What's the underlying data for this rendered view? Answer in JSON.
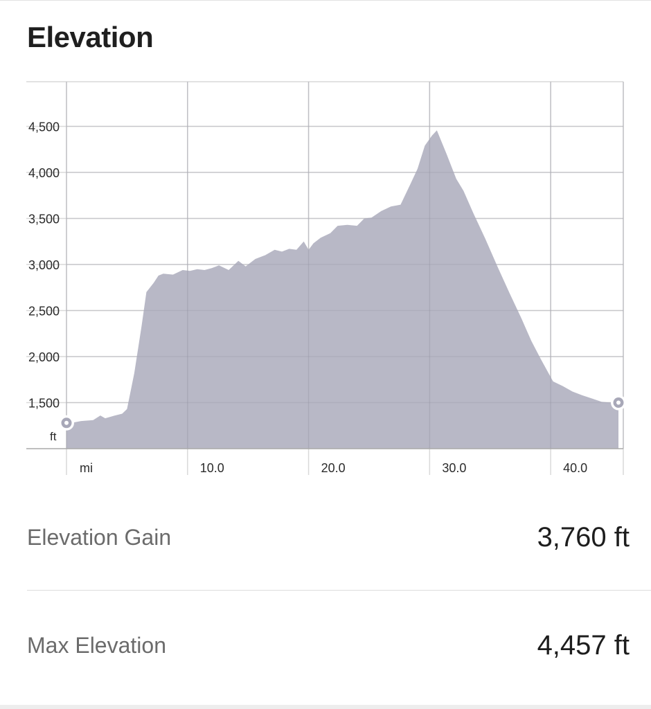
{
  "header": {
    "title": "Elevation"
  },
  "chart_data": {
    "type": "area",
    "title": "Elevation",
    "xlabel": "mi",
    "ylabel": "ft",
    "xlim": [
      0,
      46
    ],
    "ylim": [
      1000,
      5000
    ],
    "x_ticks": [
      10,
      20,
      30,
      40
    ],
    "x_tick_labels": [
      "10.0",
      "20.0",
      "30.0",
      "40.0"
    ],
    "y_ticks": [
      1500,
      2000,
      2500,
      3000,
      3500,
      4000,
      4500
    ],
    "y_tick_labels": [
      "1,500",
      "2,000",
      "2,500",
      "3,000",
      "3,500",
      "4,000",
      "4,500"
    ],
    "grid": true,
    "fill_color": "#b8b8c6",
    "grid_color": "#d9d9d9",
    "series": [
      {
        "x": [
          0,
          0.6,
          1.2,
          2.2,
          2.8,
          3.2,
          4.0,
          4.6,
          5.0,
          5.6,
          6.2,
          6.6,
          7.2,
          7.6,
          8.0,
          8.8,
          9.6,
          10.2,
          10.8,
          11.4,
          12.0,
          12.6,
          13.4,
          14.2,
          14.8,
          15.6,
          16.4,
          17.2,
          17.8,
          18.4,
          19.0,
          19.6,
          20.0,
          20.4,
          21.0,
          21.8,
          22.4,
          23.2,
          24.0,
          24.6,
          25.2,
          26.0,
          26.8,
          27.6,
          28.4,
          29.0,
          29.6,
          30.2,
          30.6,
          31.4,
          32.2,
          32.8,
          33.6,
          34.6,
          35.6,
          36.6,
          37.6,
          38.4,
          39.2,
          40.2,
          41.0,
          41.8,
          42.6,
          43.4,
          44.2,
          45.0,
          45.6
        ],
        "y": [
          1280,
          1285,
          1300,
          1310,
          1360,
          1330,
          1360,
          1380,
          1430,
          1820,
          2330,
          2700,
          2800,
          2880,
          2900,
          2890,
          2940,
          2930,
          2950,
          2940,
          2960,
          2990,
          2940,
          3040,
          2980,
          3060,
          3100,
          3160,
          3140,
          3170,
          3160,
          3250,
          3160,
          3230,
          3290,
          3340,
          3420,
          3430,
          3420,
          3500,
          3510,
          3580,
          3630,
          3650,
          3870,
          4040,
          4290,
          4400,
          4457,
          4200,
          3930,
          3800,
          3560,
          3280,
          2980,
          2690,
          2410,
          2170,
          1970,
          1730,
          1680,
          1620,
          1580,
          1545,
          1510,
          1500,
          1500
        ]
      }
    ]
  },
  "stats": {
    "elevation_gain": {
      "label": "Elevation Gain",
      "value": "3,760 ft"
    },
    "max_elevation": {
      "label": "Max Elevation",
      "value": "4,457 ft"
    }
  }
}
